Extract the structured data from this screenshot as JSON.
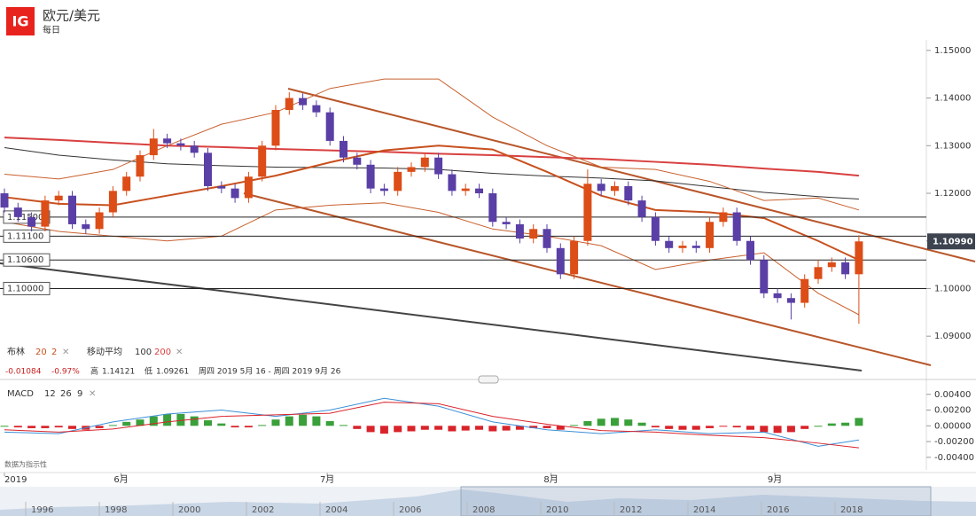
{
  "header": {
    "title": "欧元/美元",
    "subtitle": "每日"
  },
  "legend": {
    "bollinger": "布林",
    "bollinger_period": 20,
    "bollinger_dev": 2,
    "ma": "移动平均",
    "ma_fast": 100,
    "ma_slow": 200,
    "change": -0.01084,
    "change_pct": "-0.97%",
    "high_label": "高",
    "high": 1.14121,
    "low_label": "低",
    "low": 1.09261,
    "range": "周四 2019 5月 16 - 周四 2019 9月 26",
    "note": "数据为指示性"
  },
  "navigator": {
    "labels": [
      "1996",
      "1998",
      "2000",
      "2002",
      "2004",
      "2006",
      "2008",
      "2010",
      "2012",
      "2014",
      "2016",
      "2018"
    ]
  },
  "chart_data": [
    {
      "type": "candlestick",
      "up_color": "#dc4d17",
      "down_color": "#5a3fa6",
      "open": [
        1.12,
        1.117,
        1.115,
        1.113,
        1.1185,
        1.1195,
        1.1135,
        1.1125,
        1.116,
        1.1205,
        1.1235,
        1.128,
        1.1315,
        1.1305,
        1.13,
        1.1285,
        1.1215,
        1.121,
        1.119,
        1.1235,
        1.13,
        1.1375,
        1.14,
        1.1385,
        1.137,
        1.131,
        1.1275,
        1.126,
        1.121,
        1.1205,
        1.1245,
        1.1255,
        1.1275,
        1.124,
        1.1205,
        1.121,
        1.12,
        1.114,
        1.1135,
        1.1105,
        1.1125,
        1.1085,
        1.103,
        1.11,
        1.122,
        1.1205,
        1.1215,
        1.1185,
        1.115,
        1.11,
        1.1085,
        1.109,
        1.1085,
        1.114,
        1.116,
        1.11,
        1.106,
        1.099,
        1.098,
        1.097,
        1.102,
        1.1045,
        1.1055,
        1.103
      ],
      "high": [
        1.121,
        1.118,
        1.116,
        1.1195,
        1.1205,
        1.1205,
        1.1145,
        1.117,
        1.1215,
        1.1245,
        1.129,
        1.1335,
        1.1325,
        1.1315,
        1.131,
        1.1295,
        1.1225,
        1.122,
        1.1245,
        1.131,
        1.1385,
        1.14121,
        1.141,
        1.1395,
        1.138,
        1.132,
        1.1285,
        1.127,
        1.122,
        1.1255,
        1.1265,
        1.1285,
        1.1285,
        1.125,
        1.122,
        1.122,
        1.121,
        1.115,
        1.1145,
        1.1135,
        1.1135,
        1.1095,
        1.111,
        1.125,
        1.123,
        1.1225,
        1.1225,
        1.1195,
        1.116,
        1.111,
        1.11,
        1.11,
        1.115,
        1.117,
        1.117,
        1.111,
        1.107,
        1.1,
        1.099,
        1.103,
        1.106,
        1.1065,
        1.1065,
        1.1112
      ],
      "low": [
        1.116,
        1.114,
        1.112,
        1.112,
        1.1175,
        1.1125,
        1.1115,
        1.1115,
        1.115,
        1.1195,
        1.1225,
        1.127,
        1.1295,
        1.129,
        1.1275,
        1.1205,
        1.12,
        1.118,
        1.118,
        1.1225,
        1.129,
        1.1365,
        1.1375,
        1.136,
        1.13,
        1.1265,
        1.125,
        1.12,
        1.1195,
        1.1195,
        1.1235,
        1.1245,
        1.123,
        1.1195,
        1.1195,
        1.119,
        1.113,
        1.1125,
        1.1095,
        1.1095,
        1.1075,
        1.102,
        1.102,
        1.109,
        1.1195,
        1.1195,
        1.1175,
        1.114,
        1.109,
        1.1075,
        1.1075,
        1.1075,
        1.1075,
        1.113,
        1.109,
        1.105,
        1.098,
        1.097,
        1.0935,
        1.096,
        1.101,
        1.1035,
        1.102,
        1.09261
      ],
      "close": [
        1.117,
        1.115,
        1.113,
        1.1185,
        1.1195,
        1.1135,
        1.1125,
        1.116,
        1.1205,
        1.1235,
        1.128,
        1.1315,
        1.1305,
        1.13,
        1.1285,
        1.1215,
        1.121,
        1.119,
        1.1235,
        1.13,
        1.1375,
        1.14,
        1.1385,
        1.137,
        1.131,
        1.1275,
        1.126,
        1.121,
        1.1205,
        1.1245,
        1.1255,
        1.1275,
        1.124,
        1.1205,
        1.121,
        1.12,
        1.114,
        1.1135,
        1.1105,
        1.1125,
        1.1085,
        1.103,
        1.11,
        1.122,
        1.1205,
        1.1215,
        1.1185,
        1.115,
        1.11,
        1.1085,
        1.109,
        1.1085,
        1.114,
        1.116,
        1.11,
        1.106,
        1.099,
        1.098,
        1.097,
        1.102,
        1.1045,
        1.1055,
        1.103,
        1.1099
      ],
      "overlays": [
        {
          "color": "#d94040",
          "width": 2,
          "x": [
            0,
            4,
            8,
            12,
            16,
            20,
            24,
            28,
            32,
            36,
            40,
            44,
            48,
            52,
            56,
            60,
            63
          ],
          "values": [
            1.1317,
            1.1312,
            1.1306,
            1.13,
            1.1297,
            1.1293,
            1.129,
            1.1287,
            1.1283,
            1.128,
            1.1276,
            1.1272,
            1.1266,
            1.126,
            1.1252,
            1.1245,
            1.1237
          ]
        },
        {
          "color": "#333333",
          "width": 1,
          "x": [
            0,
            4,
            8,
            12,
            16,
            20,
            24,
            28,
            32,
            36,
            40,
            44,
            48,
            52,
            56,
            60,
            63
          ],
          "values": [
            1.1296,
            1.128,
            1.127,
            1.1262,
            1.1258,
            1.1255,
            1.1254,
            1.1253,
            1.125,
            1.1242,
            1.1236,
            1.1232,
            1.1226,
            1.1214,
            1.1202,
            1.1193,
            1.1188
          ]
        },
        {
          "color": "#c8501e",
          "width": 2,
          "x": [
            0,
            4,
            8,
            12,
            16,
            20,
            24,
            28,
            32,
            36,
            40,
            44,
            48,
            52,
            56,
            60,
            63
          ],
          "values": [
            1.1192,
            1.1178,
            1.1175,
            1.1195,
            1.1215,
            1.1237,
            1.1265,
            1.129,
            1.13,
            1.1292,
            1.1245,
            1.1195,
            1.1165,
            1.116,
            1.1148,
            1.11,
            1.106
          ]
        },
        {
          "color": "#c8602e",
          "width": 1,
          "x": [
            0,
            4,
            8,
            12,
            16,
            20,
            24,
            28,
            32,
            36,
            40,
            44,
            48,
            52,
            56,
            60,
            63
          ],
          "values": [
            1.124,
            1.123,
            1.125,
            1.13,
            1.1345,
            1.137,
            1.142,
            1.144,
            1.144,
            1.136,
            1.13,
            1.1255,
            1.125,
            1.1225,
            1.1185,
            1.119,
            1.1165
          ]
        },
        {
          "color": "#c8602e",
          "width": 1,
          "x": [
            0,
            4,
            8,
            12,
            16,
            20,
            24,
            28,
            32,
            36,
            40,
            44,
            48,
            52,
            56,
            60,
            63
          ],
          "values": [
            1.114,
            1.112,
            1.111,
            1.11,
            1.111,
            1.1165,
            1.1175,
            1.118,
            1.116,
            1.1125,
            1.111,
            1.109,
            1.104,
            1.106,
            1.1075,
            1.099,
            1.0945
          ]
        }
      ],
      "levels": [
        {
          "value": 1.115,
          "label": "1.11500"
        },
        {
          "value": 1.111,
          "label": "1.11100"
        },
        {
          "value": 1.106,
          "label": "1.10600"
        },
        {
          "value": 1.1,
          "label": "1.10000"
        }
      ],
      "last_price": {
        "value": 1.1099,
        "label": "1.10990"
      },
      "ylim": [
        1.0824,
        1.155
      ],
      "yticks": [
        {
          "value": 1.15,
          "label": "1.15000"
        },
        {
          "value": 1.14,
          "label": "1.14000"
        },
        {
          "value": 1.13,
          "label": "1.13000"
        },
        {
          "value": 1.12,
          "label": "1.12000"
        },
        {
          "value": 1.11,
          "label": "1.11000"
        },
        {
          "value": 1.1,
          "label": "1.10000"
        },
        {
          "value": 1.09,
          "label": "1.09000"
        }
      ],
      "xticks": [
        {
          "value": 0,
          "label": "2019"
        },
        {
          "value": 8.6,
          "label": "6月"
        },
        {
          "value": 23.8,
          "label": "7月"
        },
        {
          "value": 40.3,
          "label": "8月"
        },
        {
          "value": 56.8,
          "label": "9月"
        }
      ]
    },
    {
      "type": "macd",
      "title": "MACD",
      "fast": 12,
      "slow": 26,
      "signal": 9,
      "pos_color": "#3aa03a",
      "neg_color": "#d9232a",
      "histogram": [
        0,
        -0.0002,
        -0.0003,
        -0.0003,
        -0.0002,
        -0.0004,
        -0.0005,
        -0.0003,
        0.0001,
        0.0005,
        0.0008,
        0.0012,
        0.0015,
        0.0015,
        0.0012,
        0.0007,
        0.0003,
        -0.0002,
        -0.0002,
        0.0001,
        0.0008,
        0.0012,
        0.0014,
        0.0012,
        0.0006,
        0.0001,
        -0.0004,
        -0.0008,
        -0.001,
        -0.0008,
        -0.0007,
        -0.0005,
        -0.0005,
        -0.0007,
        -0.0006,
        -0.0005,
        -0.0007,
        -0.0006,
        -0.0005,
        -0.0003,
        -0.0003,
        -0.0005,
        0.0001,
        0.0006,
        0.0009,
        0.001,
        0.0008,
        0.0004,
        -0.0002,
        -0.0004,
        -0.0005,
        -0.0005,
        -0.0003,
        -0.0001,
        -0.0002,
        -0.0005,
        -0.0008,
        -0.0009,
        -0.0008,
        -0.0004,
        0,
        0.0003,
        0.0004,
        0.001
      ],
      "lines": [
        {
          "color": "#3b8fd6",
          "x": [
            0,
            4,
            8,
            12,
            16,
            20,
            24,
            28,
            32,
            36,
            40,
            44,
            48,
            52,
            56,
            60,
            63
          ],
          "values": [
            -0.0008,
            -0.001,
            0.0005,
            0.0015,
            0.002,
            0.0012,
            0.002,
            0.0035,
            0.0025,
            0.0005,
            -0.0005,
            -0.001,
            -0.0005,
            -0.001,
            -0.0008,
            -0.0026,
            -0.0018
          ]
        },
        {
          "color": "#d9232a",
          "x": [
            0,
            4,
            8,
            12,
            16,
            20,
            24,
            28,
            32,
            36,
            40,
            44,
            48,
            52,
            56,
            60,
            63
          ],
          "values": [
            -0.0005,
            -0.0008,
            -0.0004,
            0.0005,
            0.0012,
            0.0014,
            0.0016,
            0.003,
            0.0028,
            0.0012,
            0.0002,
            -0.0006,
            -0.0008,
            -0.0012,
            -0.0015,
            -0.0022,
            -0.0028
          ]
        }
      ],
      "ylim": [
        -0.0056,
        0.0051
      ],
      "yticks": [
        {
          "value": 0.004,
          "label": "0.00400"
        },
        {
          "value": 0.002,
          "label": "0.00200"
        },
        {
          "value": 0,
          "label": "0.00000"
        },
        {
          "value": -0.002,
          "label": "-0.00200"
        },
        {
          "value": -0.004,
          "label": "-0.00400"
        }
      ]
    }
  ]
}
